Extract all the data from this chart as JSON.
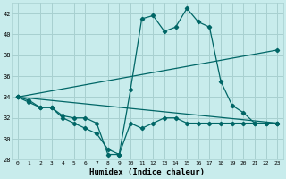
{
  "xlabel": "Humidex (Indice chaleur)",
  "bg_color": "#c8ecec",
  "grid_color": "#a8d0d0",
  "line_color": "#006666",
  "xlim": [
    -0.5,
    23.5
  ],
  "ylim": [
    28,
    43
  ],
  "xticks": [
    0,
    1,
    2,
    3,
    4,
    5,
    6,
    7,
    8,
    9,
    10,
    11,
    12,
    13,
    14,
    15,
    16,
    17,
    18,
    19,
    20,
    21,
    22,
    23
  ],
  "yticks": [
    28,
    30,
    32,
    34,
    36,
    38,
    40,
    42
  ],
  "line1_x": [
    0,
    1,
    2,
    3,
    4,
    5,
    6,
    7,
    8,
    9,
    10,
    11,
    12,
    13,
    14,
    15,
    16,
    17,
    18,
    19,
    20,
    21,
    22,
    23
  ],
  "line1_y": [
    34,
    33.7,
    33,
    33,
    32,
    31.5,
    31,
    30.5,
    29,
    28.5,
    31.5,
    31,
    31.5,
    32,
    32,
    31.5,
    31.5,
    31.5,
    31.5,
    31.5,
    31.5,
    31.5,
    31.5,
    31.5
  ],
  "line2_x": [
    0,
    1,
    2,
    3,
    4,
    5,
    6,
    7,
    8,
    9,
    10,
    11,
    12,
    13,
    14,
    15,
    16,
    17,
    18,
    19,
    20,
    21,
    22,
    23
  ],
  "line2_y": [
    34,
    33.5,
    33,
    33,
    32.2,
    32,
    32,
    31.5,
    28.5,
    28.5,
    34.7,
    41.5,
    41.8,
    40.3,
    40.7,
    42.5,
    41.2,
    40.7,
    35.5,
    33.2,
    32.5,
    31.5,
    31.5,
    31.5
  ],
  "line3_x": [
    0,
    23
  ],
  "line3_y": [
    34,
    38.5
  ],
  "line4_x": [
    0,
    23
  ],
  "line4_y": [
    34,
    31.5
  ]
}
